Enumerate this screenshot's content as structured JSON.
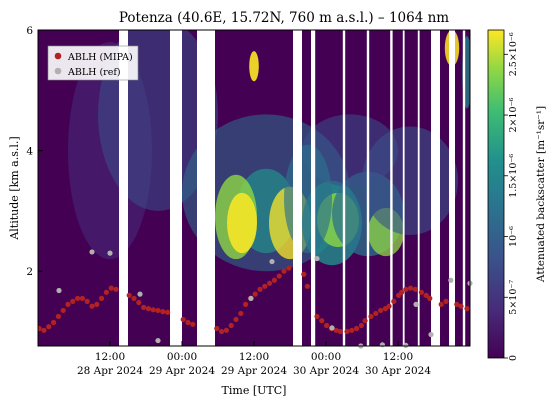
{
  "chart_data": {
    "type": "heatmap",
    "title": "Potenza (40.6E, 15.72N, 760 m a.s.l.) – 1064 nm",
    "xlabel": "Time [UTC]",
    "ylabel": "Altitude [km a.s.l.]",
    "ylim": [
      0.76,
      6
    ],
    "yticks": [
      {
        "v": 2,
        "label": "2"
      },
      {
        "v": 4,
        "label": "4"
      },
      {
        "v": 6,
        "label": "6"
      }
    ],
    "xlim_hours": [
      0,
      72
    ],
    "xticks": [
      {
        "h": 12,
        "label": "12:00"
      },
      {
        "h": 24,
        "label": "00:00"
      },
      {
        "h": 36,
        "label": "12:00"
      },
      {
        "h": 48,
        "label": "00:00"
      },
      {
        "h": 60,
        "label": "12:00"
      }
    ],
    "date_labels": [
      {
        "h": 12,
        "label": "28 Apr 2024"
      },
      {
        "h": 24,
        "label": "29 Apr 2024"
      },
      {
        "h": 36,
        "label": "29 Apr 2024"
      },
      {
        "h": 48,
        "label": "30 Apr 2024"
      },
      {
        "h": 60,
        "label": "30 Apr 2024"
      }
    ],
    "colorbar": {
      "label": "Attenuated backscatter [m⁻¹sr⁻¹]",
      "range": [
        0,
        2.7e-06
      ],
      "ticks": [
        {
          "v": 0,
          "label": "0"
        },
        {
          "v": 5e-07,
          "label": "5×10⁻⁷"
        },
        {
          "v": 1e-06,
          "label": "10⁻⁶"
        },
        {
          "v": 1.5e-06,
          "label": "1.5×10⁻⁶"
        },
        {
          "v": 2e-06,
          "label": "2×10⁻⁶"
        },
        {
          "v": 2.5e-06,
          "label": "2.5×10⁻⁶"
        }
      ]
    },
    "data_gaps_hours": [
      [
        13.5,
        15.0
      ],
      [
        22.0,
        24.0
      ],
      [
        26.5,
        29.5
      ],
      [
        42.5,
        44.0
      ],
      [
        45.5,
        46.2
      ],
      [
        50.8,
        51.2
      ],
      [
        54.8,
        55.2
      ],
      [
        58.7,
        59.1
      ],
      [
        60.8,
        61.1
      ],
      [
        63.3,
        63.6
      ],
      [
        65.5,
        67.0
      ],
      [
        68.5,
        69.5
      ],
      [
        70.8,
        71.2
      ]
    ],
    "legend": {
      "position": "top-left",
      "entries": [
        "ABLH (MIPA)",
        "ABLH (ref)"
      ]
    },
    "series": [
      {
        "name": "ABLH (MIPA)",
        "color": "#b22222",
        "points": [
          [
            0.2,
            1.05
          ],
          [
            1.0,
            1.02
          ],
          [
            1.8,
            1.08
          ],
          [
            2.6,
            1.15
          ],
          [
            3.4,
            1.25
          ],
          [
            4.2,
            1.35
          ],
          [
            5.0,
            1.45
          ],
          [
            5.8,
            1.5
          ],
          [
            6.6,
            1.55
          ],
          [
            7.4,
            1.55
          ],
          [
            8.2,
            1.5
          ],
          [
            9.0,
            1.42
          ],
          [
            9.8,
            1.45
          ],
          [
            10.6,
            1.55
          ],
          [
            11.4,
            1.65
          ],
          [
            12.2,
            1.72
          ],
          [
            13.0,
            1.7
          ],
          [
            15.2,
            1.6
          ],
          [
            16.0,
            1.55
          ],
          [
            16.8,
            1.48
          ],
          [
            17.6,
            1.4
          ],
          [
            18.4,
            1.38
          ],
          [
            19.2,
            1.36
          ],
          [
            20.0,
            1.35
          ],
          [
            20.8,
            1.33
          ],
          [
            21.6,
            1.32
          ],
          [
            24.2,
            1.2
          ],
          [
            25.0,
            1.15
          ],
          [
            25.8,
            1.12
          ],
          [
            29.8,
            1.05
          ],
          [
            30.6,
            1.0
          ],
          [
            31.4,
            1.02
          ],
          [
            32.2,
            1.1
          ],
          [
            33.0,
            1.2
          ],
          [
            33.8,
            1.3
          ],
          [
            34.6,
            1.45
          ],
          [
            35.4,
            1.55
          ],
          [
            36.2,
            1.62
          ],
          [
            37.0,
            1.7
          ],
          [
            37.8,
            1.75
          ],
          [
            38.6,
            1.8
          ],
          [
            39.4,
            1.85
          ],
          [
            40.2,
            1.92
          ],
          [
            41.0,
            2.0
          ],
          [
            41.8,
            2.05
          ],
          [
            44.3,
            1.95
          ],
          [
            44.9,
            1.75
          ],
          [
            46.5,
            1.25
          ],
          [
            47.3,
            1.18
          ],
          [
            48.1,
            1.1
          ],
          [
            48.9,
            1.05
          ],
          [
            49.7,
            1.02
          ],
          [
            50.4,
            1.0
          ],
          [
            51.5,
            1.0
          ],
          [
            52.3,
            1.02
          ],
          [
            53.1,
            1.05
          ],
          [
            53.9,
            1.1
          ],
          [
            54.5,
            1.18
          ],
          [
            55.5,
            1.25
          ],
          [
            56.3,
            1.3
          ],
          [
            57.1,
            1.35
          ],
          [
            57.9,
            1.38
          ],
          [
            58.5,
            1.42
          ],
          [
            59.3,
            1.5
          ],
          [
            60.1,
            1.6
          ],
          [
            60.6,
            1.65
          ],
          [
            61.3,
            1.7
          ],
          [
            62.1,
            1.72
          ],
          [
            62.9,
            1.7
          ],
          [
            63.9,
            1.65
          ],
          [
            64.7,
            1.6
          ],
          [
            65.3,
            1.55
          ],
          [
            67.2,
            1.45
          ],
          [
            68.0,
            1.5
          ],
          [
            69.8,
            1.45
          ],
          [
            70.5,
            1.42
          ],
          [
            71.5,
            1.38
          ]
        ]
      },
      {
        "name": "ABLH (ref)",
        "color": "#b0b0b0",
        "points": [
          [
            3.5,
            1.68
          ],
          [
            9.0,
            2.32
          ],
          [
            12.0,
            2.3
          ],
          [
            17.0,
            1.62
          ],
          [
            20.0,
            0.85
          ],
          [
            35.5,
            1.55
          ],
          [
            39.0,
            2.16
          ],
          [
            46.5,
            2.21
          ],
          [
            49.0,
            1.06
          ],
          [
            53.8,
            0.76
          ],
          [
            57.4,
            0.78
          ],
          [
            61.3,
            0.77
          ],
          [
            63.0,
            1.45
          ],
          [
            65.5,
            0.95
          ],
          [
            68.8,
            1.85
          ],
          [
            72.0,
            1.8
          ]
        ]
      }
    ]
  }
}
